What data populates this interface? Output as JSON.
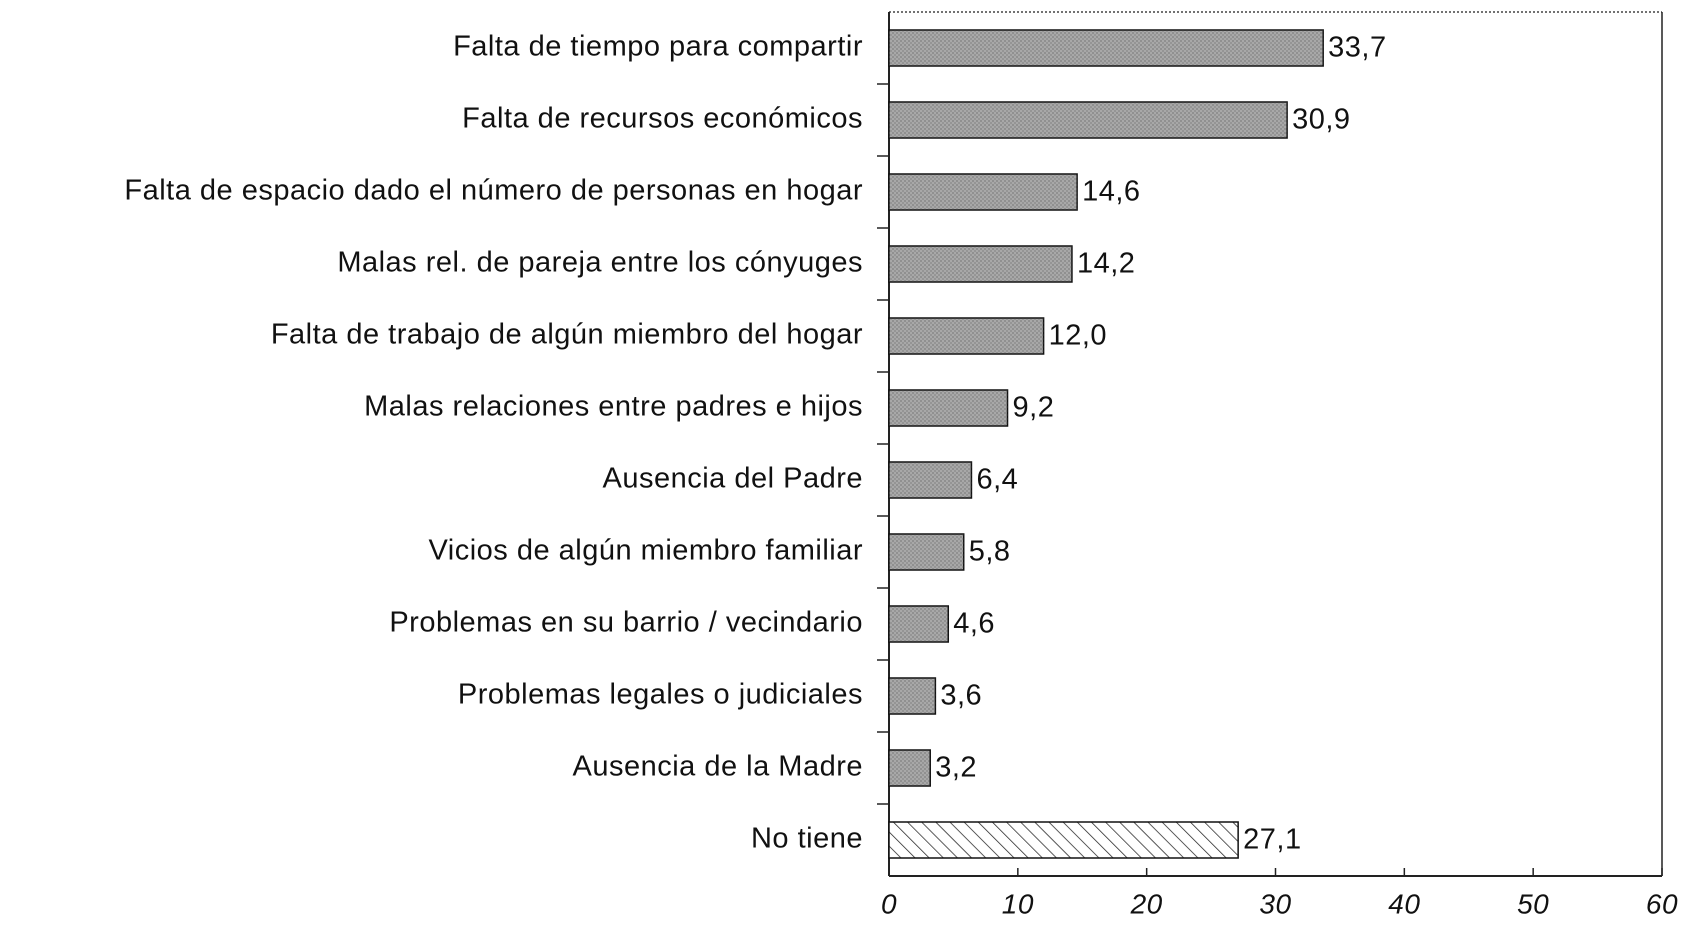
{
  "chart_data": {
    "type": "bar",
    "orientation": "horizontal",
    "categories": [
      "Falta de tiempo para compartir",
      "Falta de recursos económicos",
      "Falta de espacio dado el número de personas en hogar",
      "Malas rel. de pareja entre los cónyuges",
      "Falta de trabajo de algún miembro del hogar",
      "Malas relaciones entre padres e hijos",
      "Ausencia del Padre",
      "Vicios de algún miembro familiar",
      "Problemas en su barrio / vecindario",
      "Problemas legales o judiciales",
      "Ausencia de la Madre",
      "No tiene"
    ],
    "values": [
      33.7,
      30.9,
      14.6,
      14.2,
      12.0,
      9.2,
      6.4,
      5.8,
      4.6,
      3.6,
      3.2,
      27.1
    ],
    "value_labels": [
      "33,7",
      "30,9",
      "14,6",
      "14,2",
      "12,0",
      "9,2",
      "6,4",
      "5,8",
      "4,6",
      "3,6",
      "3,2",
      "27,1"
    ],
    "color": "#a8a8a8",
    "xlim": [
      0,
      60
    ],
    "xticks": [
      0,
      10,
      20,
      30,
      40,
      50,
      60
    ],
    "grid": false
  }
}
